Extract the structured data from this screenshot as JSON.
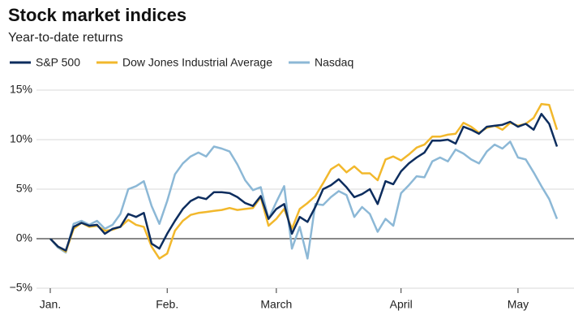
{
  "chart_data": {
    "type": "line",
    "title": "Stock market indices",
    "subtitle": "Year-to-date returns",
    "categories": [
      "Jan.",
      null,
      null,
      null,
      null,
      null,
      null,
      null,
      null,
      null,
      null,
      null,
      null,
      null,
      null,
      "Feb.",
      null,
      null,
      null,
      null,
      null,
      null,
      null,
      null,
      null,
      null,
      null,
      null,
      null,
      "March",
      null,
      null,
      null,
      null,
      null,
      null,
      null,
      null,
      null,
      null,
      null,
      null,
      null,
      null,
      null,
      "April",
      null,
      null,
      null,
      null,
      null,
      null,
      null,
      null,
      null,
      null,
      null,
      null,
      null,
      null,
      "May",
      null,
      null,
      null,
      null,
      null
    ],
    "series": [
      {
        "name": "S&P 500",
        "color": "#0d2d5e",
        "values": [
          0,
          -0.8,
          -1.2,
          1.2,
          1.6,
          1.3,
          1.4,
          0.5,
          1.0,
          1.2,
          2.5,
          2.2,
          2.6,
          -0.5,
          -1.0,
          0.5,
          1.8,
          3.0,
          3.8,
          4.2,
          4.0,
          4.7,
          4.7,
          4.6,
          4.2,
          3.6,
          3.3,
          4.3,
          2.0,
          3.0,
          3.5,
          0.5,
          2.2,
          1.7,
          3.2,
          5.0,
          5.4,
          6.0,
          5.2,
          4.2,
          4.5,
          5.0,
          3.5,
          5.8,
          5.5,
          6.8,
          7.6,
          8.2,
          8.7,
          9.9,
          9.9,
          10.0,
          9.6,
          11.3,
          11.0,
          10.6,
          11.3,
          11.4,
          11.5,
          11.8,
          11.3,
          11.6,
          11.0,
          12.6,
          11.6,
          9.3
        ]
      },
      {
        "name": "Dow Jones Industrial Average",
        "color": "#f2b82c",
        "values": [
          0,
          -0.8,
          -1.3,
          1.0,
          1.6,
          1.2,
          1.3,
          0.8,
          0.9,
          1.2,
          1.9,
          1.4,
          1.2,
          -0.8,
          -2.0,
          -1.5,
          0.8,
          1.8,
          2.4,
          2.6,
          2.7,
          2.8,
          2.9,
          3.1,
          2.9,
          3.0,
          3.1,
          4.2,
          1.3,
          2.0,
          3.0,
          1.0,
          3.0,
          3.6,
          4.3,
          5.6,
          7.0,
          7.5,
          6.7,
          7.3,
          6.6,
          6.6,
          5.9,
          8.0,
          8.3,
          7.9,
          8.5,
          9.2,
          9.5,
          10.3,
          10.3,
          10.5,
          10.6,
          11.7,
          11.3,
          10.7,
          11.2,
          11.4,
          11.0,
          11.7,
          11.4,
          11.6,
          12.2,
          13.6,
          13.5,
          11.0
        ]
      },
      {
        "name": "Nasdaq",
        "color": "#8cb8d6",
        "values": [
          0,
          -0.9,
          -1.4,
          1.5,
          1.8,
          1.4,
          1.8,
          1.0,
          1.4,
          2.5,
          5.0,
          5.3,
          5.8,
          3.3,
          1.5,
          3.8,
          6.5,
          7.6,
          8.3,
          8.7,
          8.3,
          9.3,
          9.1,
          8.8,
          7.5,
          5.9,
          4.9,
          5.2,
          2.0,
          3.7,
          5.3,
          -1.0,
          1.2,
          -2.0,
          3.5,
          3.4,
          4.2,
          4.8,
          4.4,
          2.2,
          3.2,
          2.5,
          0.7,
          2.0,
          1.3,
          4.6,
          5.4,
          6.3,
          6.2,
          7.8,
          8.2,
          7.8,
          9.0,
          8.6,
          8.0,
          7.6,
          8.8,
          9.5,
          9.1,
          9.8,
          8.2,
          8.0,
          6.7,
          5.3,
          4.0,
          2.0
        ]
      }
    ],
    "ylim": [
      -5,
      16
    ],
    "yticks": [
      {
        "value": -5,
        "label": "−5%"
      },
      {
        "value": 0,
        "label": "0%"
      },
      {
        "value": 5,
        "label": "5%"
      },
      {
        "value": 10,
        "label": "10%"
      },
      {
        "value": 15,
        "label": "15%"
      }
    ],
    "grid": true
  }
}
